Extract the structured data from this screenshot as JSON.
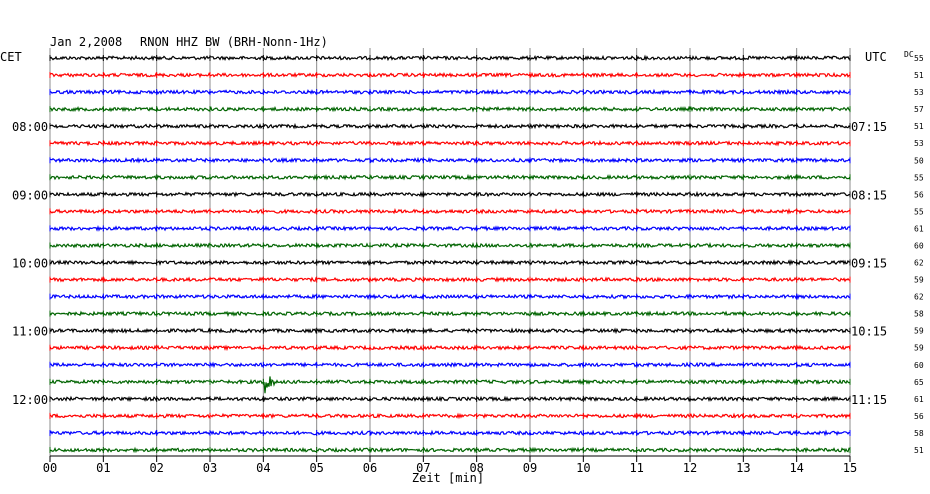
{
  "header": {
    "date": "Jan 2,2008",
    "station": "RNON HHZ BW (BRH-Nonn-1Hz)",
    "left_tz": "CET",
    "right_tz": "UTC",
    "dc_label": "DC"
  },
  "chart_data": {
    "type": "line",
    "title": "Jan 2,2008   RNON HHZ BW (BRH-Nonn-1Hz)",
    "xlabel": "Zeit [min]",
    "ylabel": "",
    "xlim": [
      0,
      15
    ],
    "x_ticks": [
      "00",
      "01",
      "02",
      "03",
      "04",
      "05",
      "06",
      "07",
      "08",
      "09",
      "10",
      "11",
      "12",
      "13",
      "14",
      "15"
    ],
    "grid": true,
    "trace_count": 24,
    "trace_colors": [
      "#000000",
      "#ff0000",
      "#0000ff",
      "#006400"
    ],
    "left_time_labels": [
      {
        "trace": 4,
        "label": "08:00"
      },
      {
        "trace": 8,
        "label": "09:00"
      },
      {
        "trace": 12,
        "label": "10:00"
      },
      {
        "trace": 16,
        "label": "11:00"
      },
      {
        "trace": 20,
        "label": "12:00"
      }
    ],
    "right_time_labels": [
      {
        "trace": 4,
        "label": "07:15"
      },
      {
        "trace": 8,
        "label": "08:15"
      },
      {
        "trace": 12,
        "label": "09:15"
      },
      {
        "trace": 16,
        "label": "10:15"
      },
      {
        "trace": 20,
        "label": "11:15"
      }
    ],
    "dc_values": [
      55,
      51,
      53,
      57,
      51,
      53,
      50,
      55,
      56,
      55,
      61,
      60,
      62,
      59,
      62,
      58,
      59,
      59,
      60,
      65,
      61,
      56,
      58,
      51
    ],
    "events": [
      {
        "trace": 19,
        "minute": 4.05,
        "amplitude": "large"
      }
    ]
  }
}
